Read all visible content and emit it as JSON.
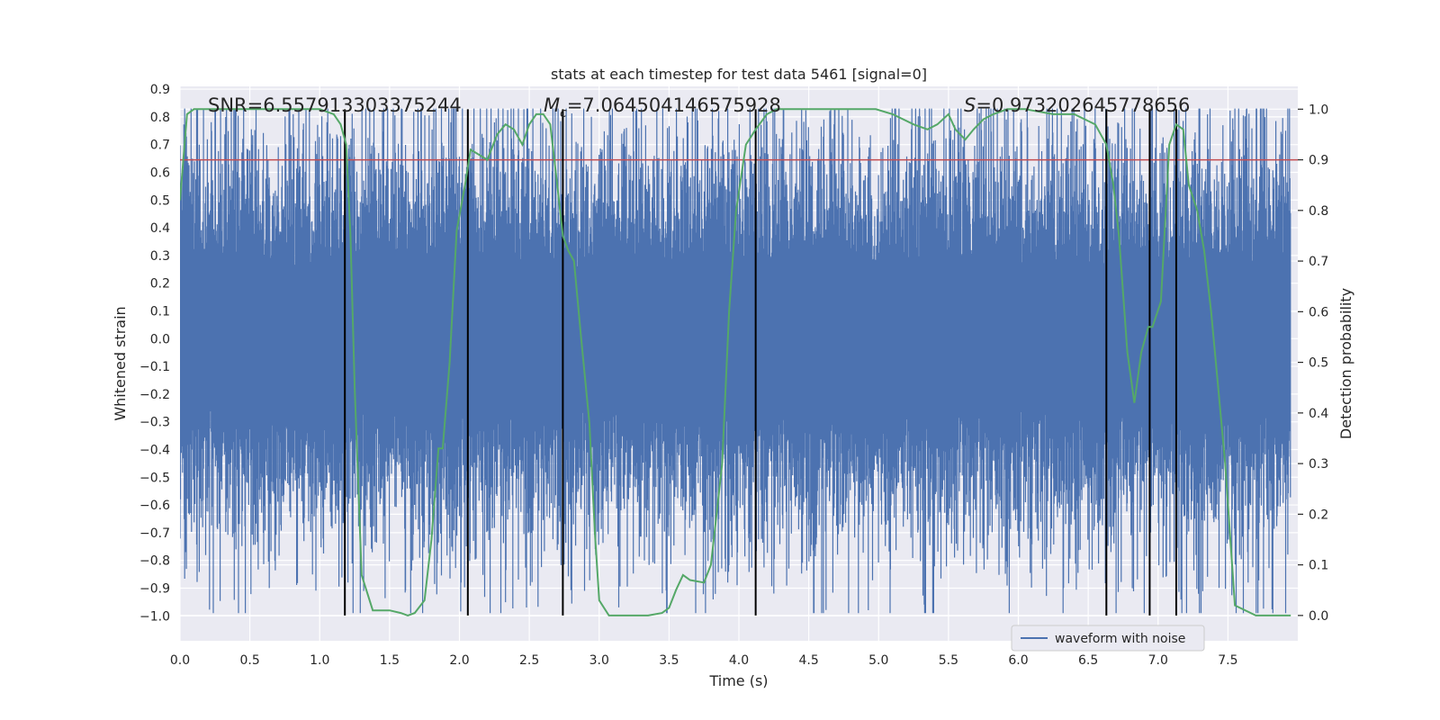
{
  "chart_data": {
    "type": "line",
    "title": "stats at each timestep for test data 5461 [signal=0]",
    "xlabel": "Time (s)",
    "ylabel_left": "Whitened strain",
    "ylabel_right": "Detection probability",
    "xlim": [
      0.0,
      8.0
    ],
    "ylim_left": [
      -1.09,
      0.91
    ],
    "ylim_right": [
      -0.05,
      1.045
    ],
    "x_ticks": [
      0.0,
      0.5,
      1.0,
      1.5,
      2.0,
      2.5,
      3.0,
      3.5,
      4.0,
      4.5,
      5.0,
      5.5,
      6.0,
      6.5,
      7.0,
      7.5
    ],
    "x_tick_labels": [
      "0.0",
      "0.5",
      "1.0",
      "1.5",
      "2.0",
      "2.5",
      "3.0",
      "3.5",
      "4.0",
      "4.5",
      "5.0",
      "5.5",
      "6.0",
      "6.5",
      "7.0",
      "7.5"
    ],
    "y_left_ticks": [
      0.9,
      0.8,
      0.7,
      0.6,
      0.5,
      0.4,
      0.3,
      0.2,
      0.1,
      0.0,
      -0.1,
      -0.2,
      -0.3,
      -0.4,
      -0.5,
      -0.6,
      -0.7,
      -0.8,
      -0.9,
      -1.0
    ],
    "y_left_tick_labels": [
      "0.9",
      "0.8",
      "0.7",
      "0.6",
      "0.5",
      "0.4",
      "0.3",
      "0.2",
      "0.1",
      "0.0",
      "−0.1",
      "−0.2",
      "−0.3",
      "−0.4",
      "−0.5",
      "−0.6",
      "−0.7",
      "−0.8",
      "−0.9",
      "−1.0"
    ],
    "y_right_ticks": [
      1.0,
      0.9,
      0.8,
      0.7,
      0.6,
      0.5,
      0.4,
      0.3,
      0.2,
      0.1,
      0.0
    ],
    "y_right_tick_labels": [
      "1.0",
      "0.9",
      "0.8",
      "0.7",
      "0.6",
      "0.5",
      "0.4",
      "0.3",
      "0.2",
      "0.1",
      "0.0"
    ],
    "annotations": {
      "snr": "SNR=6.557913303375244",
      "mc_symbol": "M",
      "mc_sub": "c",
      "mc_value": "=7.064504146575928",
      "s_symbol": "S",
      "s_value": "=0.973202645778656"
    },
    "threshold_right": 0.9,
    "vertical_lines_x": [
      1.18,
      2.06,
      2.74,
      4.12,
      6.63,
      6.94,
      7.13
    ],
    "waveform": {
      "name": "waveform with noise",
      "sigma": 0.13,
      "typical_peak": 0.55,
      "max_value": 0.83,
      "min_value": -0.99
    },
    "detection_probability": {
      "x": [
        0.0,
        0.05,
        0.1,
        0.2,
        0.4,
        0.6,
        0.8,
        1.0,
        1.1,
        1.15,
        1.19,
        1.22,
        1.25,
        1.3,
        1.38,
        1.5,
        1.58,
        1.63,
        1.68,
        1.75,
        1.8,
        1.85,
        1.88,
        1.93,
        1.98,
        2.04,
        2.08,
        2.14,
        2.2,
        2.27,
        2.33,
        2.39,
        2.45,
        2.5,
        2.55,
        2.6,
        2.65,
        2.7,
        2.74,
        2.78,
        2.82,
        2.87,
        2.93,
        2.97,
        3.0,
        3.07,
        3.2,
        3.35,
        3.45,
        3.5,
        3.55,
        3.6,
        3.65,
        3.75,
        3.8,
        3.84,
        3.88,
        3.93,
        3.98,
        4.05,
        4.12,
        4.2,
        4.27,
        4.35,
        4.5,
        4.65,
        4.8,
        4.98,
        5.1,
        5.25,
        5.35,
        5.42,
        5.5,
        5.55,
        5.62,
        5.68,
        5.75,
        5.82,
        5.92,
        6.05,
        6.25,
        6.4,
        6.55,
        6.63,
        6.68,
        6.72,
        6.78,
        6.83,
        6.88,
        6.93,
        6.96,
        7.02,
        7.08,
        7.13,
        7.18,
        7.22,
        7.28,
        7.33,
        7.38,
        7.42,
        7.48,
        7.55,
        7.7,
        7.95
      ],
      "y": [
        0.82,
        0.99,
        1.0,
        1.0,
        1.0,
        1.0,
        1.0,
        1.0,
        0.99,
        0.97,
        0.93,
        0.75,
        0.45,
        0.08,
        0.01,
        0.01,
        0.005,
        0.0,
        0.005,
        0.03,
        0.15,
        0.33,
        0.33,
        0.5,
        0.76,
        0.85,
        0.92,
        0.91,
        0.9,
        0.95,
        0.97,
        0.96,
        0.93,
        0.97,
        0.99,
        0.99,
        0.97,
        0.85,
        0.75,
        0.72,
        0.7,
        0.55,
        0.38,
        0.16,
        0.03,
        0.0,
        0.0,
        0.0,
        0.005,
        0.015,
        0.05,
        0.08,
        0.07,
        0.065,
        0.1,
        0.2,
        0.3,
        0.6,
        0.8,
        0.93,
        0.96,
        0.99,
        1.0,
        1.0,
        1.0,
        1.0,
        1.0,
        1.0,
        0.99,
        0.97,
        0.96,
        0.97,
        0.99,
        0.96,
        0.94,
        0.96,
        0.98,
        0.99,
        1.0,
        1.0,
        0.99,
        0.99,
        0.97,
        0.93,
        0.85,
        0.75,
        0.52,
        0.42,
        0.52,
        0.57,
        0.57,
        0.62,
        0.93,
        0.97,
        0.96,
        0.85,
        0.8,
        0.72,
        0.6,
        0.48,
        0.3,
        0.02,
        0.0,
        0.0
      ]
    },
    "legend": {
      "label": "waveform with noise",
      "placement": "lower-right"
    },
    "colors": {
      "background": "#eaeaf2",
      "grid": "#ffffff",
      "waveform": "#4c72b0",
      "probability": "#55a868",
      "threshold": "#c44e52",
      "vlines": "#000000",
      "text": "#262626"
    }
  }
}
